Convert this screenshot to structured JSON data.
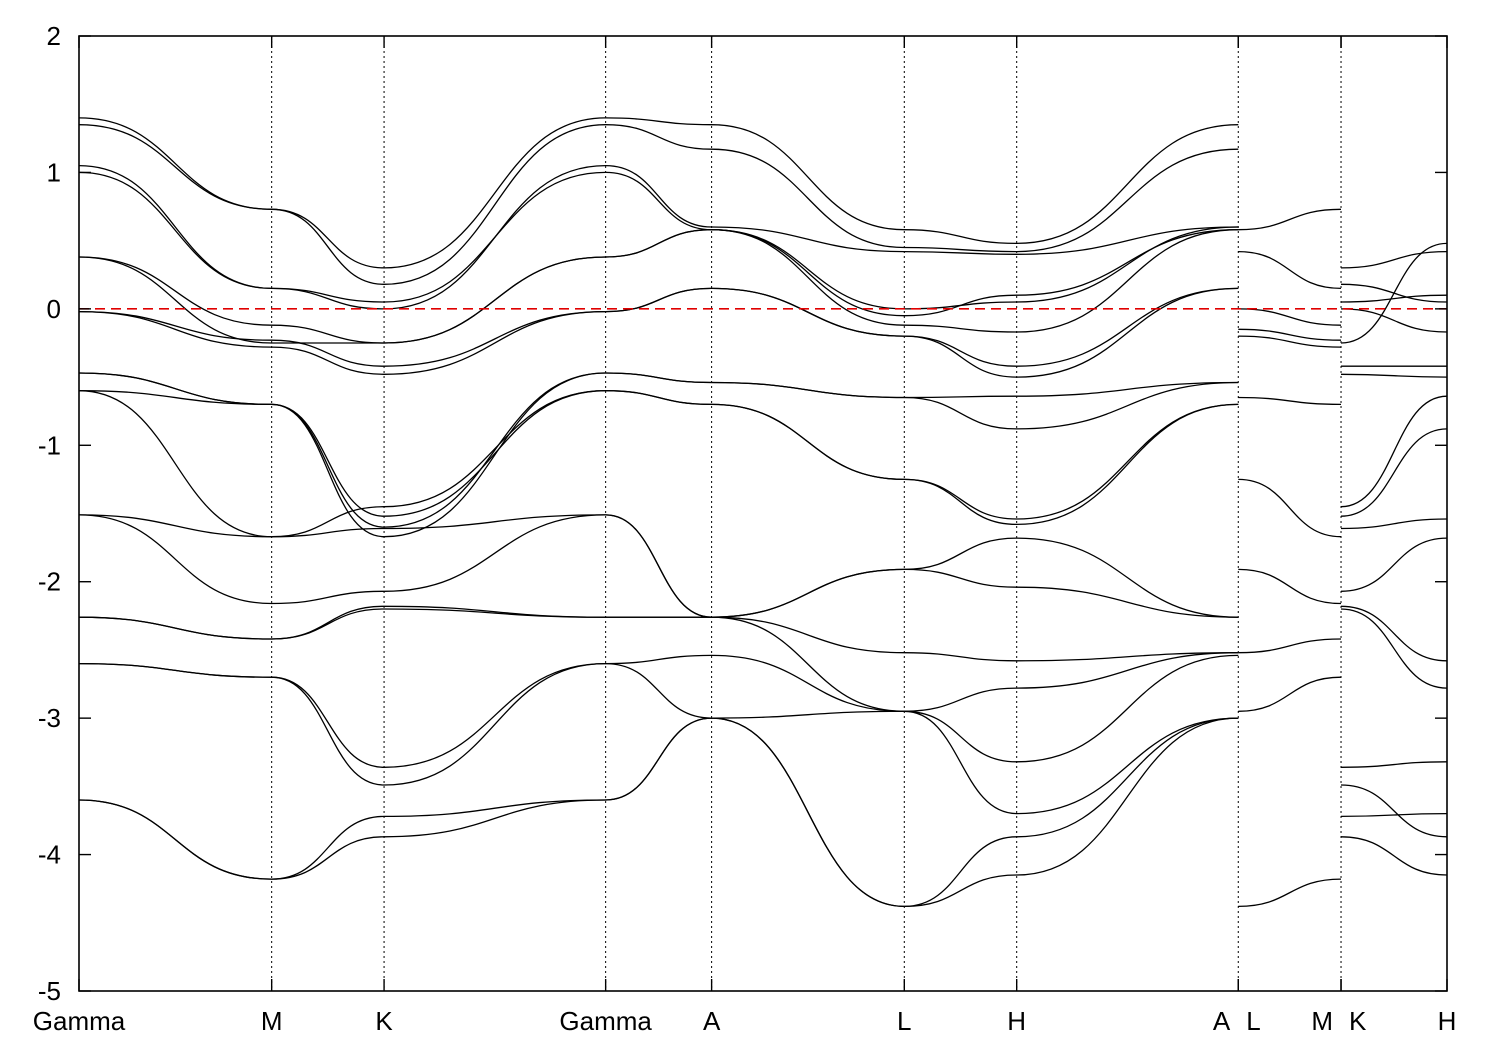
{
  "chart_data": {
    "type": "line",
    "title": "",
    "xlabel": "",
    "ylabel": "",
    "ylim": [
      -5,
      2
    ],
    "yticks": [
      -5,
      -4,
      -3,
      -2,
      -1,
      0,
      1,
      2
    ],
    "fermi_level": 0,
    "fermi_color": "#e00000",
    "line_color": "#000000",
    "grid": false,
    "segments": [
      {
        "name": "Gamma-M-K-Gamma-A-L-H-A",
        "x_range": [
          0,
          3.61
        ]
      },
      {
        "name": "L-M",
        "x_range": [
          3.61,
          3.93
        ]
      },
      {
        "name": "K-H",
        "x_range": [
          3.93,
          4.26
        ]
      }
    ],
    "kpoints": [
      {
        "label": "Gamma",
        "x": 0.0
      },
      {
        "label": "M",
        "x": 0.6
      },
      {
        "label": "K",
        "x": 0.95
      },
      {
        "label": "Gamma",
        "x": 1.64
      },
      {
        "label": "A",
        "x": 1.97
      },
      {
        "label": "L",
        "x": 2.57
      },
      {
        "label": "H",
        "x": 2.92
      },
      {
        "label": "A",
        "x": 3.61
      },
      {
        "label": "L",
        "x": 3.61
      },
      {
        "label": "M",
        "x": 3.93
      },
      {
        "label": "K",
        "x": 3.93
      },
      {
        "label": "H",
        "x": 4.26
      }
    ],
    "series": [
      {
        "segment": 0,
        "x": [
          0.0,
          0.6,
          0.95,
          1.64,
          1.97,
          2.57,
          2.92,
          3.61
        ],
        "values": [
          -3.6,
          -4.18,
          -3.72,
          -3.6,
          -3.0,
          -4.38,
          -3.87,
          -3.0
        ]
      },
      {
        "segment": 0,
        "x": [
          0.0,
          0.6,
          0.95,
          1.64,
          1.97,
          2.57,
          2.92,
          3.61
        ],
        "values": [
          -3.6,
          -4.18,
          -3.87,
          -3.6,
          -3.0,
          -4.38,
          -4.15,
          -3.0
        ]
      },
      {
        "segment": 0,
        "x": [
          0.0,
          0.6,
          0.95,
          1.64,
          1.97,
          2.57,
          2.92,
          3.61
        ],
        "values": [
          -2.6,
          -2.7,
          -3.36,
          -2.6,
          -2.54,
          -2.95,
          -3.32,
          -2.54
        ]
      },
      {
        "segment": 0,
        "x": [
          0.0,
          0.6,
          0.95,
          1.64,
          1.97,
          2.57,
          2.92,
          3.61
        ],
        "values": [
          -2.6,
          -2.7,
          -3.49,
          -2.6,
          -3.0,
          -2.95,
          -3.7,
          -3.0
        ]
      },
      {
        "segment": 0,
        "x": [
          0.0,
          0.6,
          0.95,
          1.64,
          1.97,
          2.57,
          2.92,
          3.61
        ],
        "values": [
          -2.26,
          -2.42,
          -2.18,
          -2.26,
          -2.26,
          -2.52,
          -2.58,
          -2.52
        ]
      },
      {
        "segment": 0,
        "x": [
          0.0,
          0.6,
          0.95,
          1.64,
          1.97,
          2.57,
          2.92,
          3.61
        ],
        "values": [
          -2.26,
          -2.42,
          -2.2,
          -2.26,
          -2.26,
          -2.95,
          -2.78,
          -2.52
        ]
      },
      {
        "segment": 0,
        "x": [
          0.0,
          0.6,
          0.95,
          1.64,
          1.97,
          2.57,
          2.92,
          3.61
        ],
        "values": [
          -1.51,
          -2.16,
          -2.07,
          -1.51,
          -2.26,
          -1.91,
          -2.04,
          -2.26
        ]
      },
      {
        "segment": 0,
        "x": [
          0.0,
          0.6,
          0.95,
          1.64,
          1.97,
          2.57,
          2.92,
          3.61
        ],
        "values": [
          -1.51,
          -1.67,
          -1.61,
          -1.51,
          -2.26,
          -1.91,
          -1.68,
          -2.26
        ]
      },
      {
        "segment": 0,
        "x": [
          0.0,
          0.6,
          0.95,
          1.64,
          1.97,
          2.57,
          2.92,
          3.61
        ],
        "values": [
          -0.6,
          -1.67,
          -1.45,
          -0.6,
          -0.7,
          -1.25,
          -1.54,
          -0.7
        ]
      },
      {
        "segment": 0,
        "x": [
          0.0,
          0.6,
          0.95,
          1.64,
          1.97,
          2.57,
          2.92,
          3.61
        ],
        "values": [
          -0.6,
          -0.7,
          -1.52,
          -0.6,
          -0.7,
          -1.25,
          -1.58,
          -0.7
        ]
      },
      {
        "segment": 0,
        "x": [
          0.0,
          0.6,
          0.95,
          1.64,
          1.97,
          2.57,
          2.92,
          3.61
        ],
        "values": [
          -0.47,
          -0.7,
          -1.6,
          -0.47,
          -0.54,
          -0.65,
          -0.64,
          -0.54
        ]
      },
      {
        "segment": 0,
        "x": [
          0.0,
          0.6,
          0.95,
          1.64,
          1.97,
          2.57,
          2.92,
          3.61
        ],
        "values": [
          -0.47,
          -0.7,
          -1.67,
          -0.47,
          -0.54,
          -0.65,
          -0.88,
          -0.54
        ]
      },
      {
        "segment": 0,
        "x": [
          0.0,
          0.6,
          0.95,
          1.64,
          1.97,
          2.57,
          2.92,
          3.61
        ],
        "values": [
          -0.02,
          -0.28,
          -0.48,
          -0.02,
          0.15,
          -0.2,
          -0.5,
          0.15
        ]
      },
      {
        "segment": 0,
        "x": [
          0.0,
          0.6,
          0.95,
          1.64,
          1.97,
          2.57,
          2.92,
          3.61
        ],
        "values": [
          -0.02,
          -0.23,
          -0.42,
          -0.02,
          0.15,
          -0.2,
          -0.42,
          0.15
        ]
      },
      {
        "segment": 0,
        "x": [
          0.0,
          0.6,
          0.95,
          1.64,
          1.97,
          2.57,
          2.92,
          3.61
        ],
        "values": [
          0.38,
          -0.12,
          -0.25,
          0.38,
          0.58,
          -0.12,
          -0.17,
          0.58
        ]
      },
      {
        "segment": 0,
        "x": [
          0.0,
          0.6,
          0.95,
          1.64,
          1.97,
          2.57,
          2.92,
          3.61
        ],
        "values": [
          0.38,
          -0.25,
          -0.25,
          0.38,
          0.58,
          -0.05,
          0.1,
          0.58
        ]
      },
      {
        "segment": 0,
        "x": [
          0.0,
          0.6,
          0.95,
          1.64,
          1.97,
          2.57,
          2.92,
          3.61
        ],
        "values": [
          1.0,
          0.15,
          0.05,
          1.0,
          0.58,
          0.0,
          0.05,
          0.6
        ]
      },
      {
        "segment": 0,
        "x": [
          0.0,
          0.6,
          0.95,
          1.64,
          1.97,
          2.57,
          2.92,
          3.61
        ],
        "values": [
          1.05,
          0.15,
          0.0,
          1.05,
          0.6,
          0.42,
          0.4,
          0.6
        ]
      },
      {
        "segment": 0,
        "x": [
          0.0,
          0.6,
          0.95,
          1.64,
          1.97,
          2.57,
          2.92,
          3.61
        ],
        "values": [
          1.35,
          0.73,
          0.18,
          1.35,
          1.17,
          0.45,
          0.42,
          1.17
        ]
      },
      {
        "segment": 0,
        "x": [
          0.0,
          0.6,
          0.95,
          1.64,
          1.97,
          2.57,
          2.92,
          3.61
        ],
        "values": [
          1.4,
          0.73,
          0.3,
          1.4,
          1.35,
          0.58,
          0.48,
          1.35
        ]
      },
      {
        "segment": 1,
        "x": [
          3.61,
          3.93
        ],
        "values": [
          -4.38,
          -4.18
        ]
      },
      {
        "segment": 1,
        "x": [
          3.61,
          3.93
        ],
        "values": [
          -2.95,
          -2.7
        ]
      },
      {
        "segment": 1,
        "x": [
          3.61,
          3.93
        ],
        "values": [
          -2.52,
          -2.42
        ]
      },
      {
        "segment": 1,
        "x": [
          3.61,
          3.93
        ],
        "values": [
          -1.91,
          -2.16
        ]
      },
      {
        "segment": 1,
        "x": [
          3.61,
          3.93
        ],
        "values": [
          -1.25,
          -1.67
        ]
      },
      {
        "segment": 1,
        "x": [
          3.61,
          3.93
        ],
        "values": [
          -0.65,
          -0.7
        ]
      },
      {
        "segment": 1,
        "x": [
          3.61,
          3.93
        ],
        "values": [
          -0.2,
          -0.28
        ]
      },
      {
        "segment": 1,
        "x": [
          3.61,
          3.93
        ],
        "values": [
          -0.15,
          -0.23
        ]
      },
      {
        "segment": 1,
        "x": [
          3.61,
          3.93
        ],
        "values": [
          0.0,
          -0.12
        ]
      },
      {
        "segment": 1,
        "x": [
          3.61,
          3.93
        ],
        "values": [
          0.42,
          0.15
        ]
      },
      {
        "segment": 1,
        "x": [
          3.61,
          3.93
        ],
        "values": [
          0.58,
          0.73
        ]
      },
      {
        "segment": 2,
        "x": [
          3.93,
          4.26
        ],
        "values": [
          -3.36,
          -3.32
        ]
      },
      {
        "segment": 2,
        "x": [
          3.93,
          4.26
        ],
        "values": [
          -3.49,
          -3.87
        ]
      },
      {
        "segment": 2,
        "x": [
          3.93,
          4.26
        ],
        "values": [
          -3.72,
          -3.7
        ]
      },
      {
        "segment": 2,
        "x": [
          3.93,
          4.26
        ],
        "values": [
          -3.87,
          -4.15
        ]
      },
      {
        "segment": 2,
        "x": [
          3.93,
          4.26
        ],
        "values": [
          -2.18,
          -2.58
        ]
      },
      {
        "segment": 2,
        "x": [
          3.93,
          4.26
        ],
        "values": [
          -2.2,
          -2.78
        ]
      },
      {
        "segment": 2,
        "x": [
          3.93,
          4.26
        ],
        "values": [
          -2.07,
          -1.68
        ]
      },
      {
        "segment": 2,
        "x": [
          3.93,
          4.26
        ],
        "values": [
          -1.61,
          -1.54
        ]
      },
      {
        "segment": 2,
        "x": [
          3.93,
          4.26
        ],
        "values": [
          -1.45,
          -0.64
        ]
      },
      {
        "segment": 2,
        "x": [
          3.93,
          4.26
        ],
        "values": [
          -1.52,
          -0.88
        ]
      },
      {
        "segment": 2,
        "x": [
          3.93,
          4.26
        ],
        "values": [
          -0.48,
          -0.5
        ]
      },
      {
        "segment": 2,
        "x": [
          3.93,
          4.26
        ],
        "values": [
          -0.42,
          -0.42
        ]
      },
      {
        "segment": 2,
        "x": [
          3.93,
          4.26
        ],
        "values": [
          -0.25,
          0.48
        ]
      },
      {
        "segment": 2,
        "x": [
          3.93,
          4.26
        ],
        "values": [
          0.0,
          -0.17
        ]
      },
      {
        "segment": 2,
        "x": [
          3.93,
          4.26
        ],
        "values": [
          0.05,
          0.1
        ]
      },
      {
        "segment": 2,
        "x": [
          3.93,
          4.26
        ],
        "values": [
          0.18,
          0.05
        ]
      },
      {
        "segment": 2,
        "x": [
          3.93,
          4.26
        ],
        "values": [
          0.3,
          0.42
        ]
      }
    ]
  }
}
